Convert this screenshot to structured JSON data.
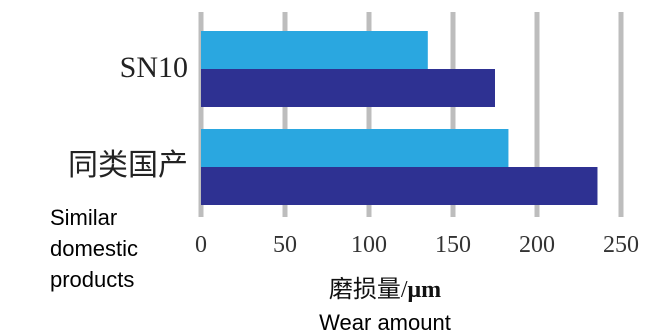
{
  "chart_data": {
    "type": "bar",
    "orientation": "horizontal",
    "categories": [
      {
        "label": "SN10",
        "sublabel": []
      },
      {
        "label": "同类国产",
        "sublabel": [
          "Similar",
          "domestic",
          "products"
        ]
      }
    ],
    "series": [
      {
        "color": "#2aa7e0",
        "values": [
          135,
          183
        ]
      },
      {
        "color": "#2e3192",
        "values": [
          175,
          236
        ]
      }
    ],
    "xticks": [
      "0",
      "50",
      "100",
      "150",
      "200",
      "250"
    ],
    "xlim": [
      0,
      250
    ],
    "xlabel": "磨损量/",
    "xlabel_unit": "μm",
    "xlabel_en": "Wear amount",
    "grid": true,
    "grid_color": "#bdbdbd"
  }
}
